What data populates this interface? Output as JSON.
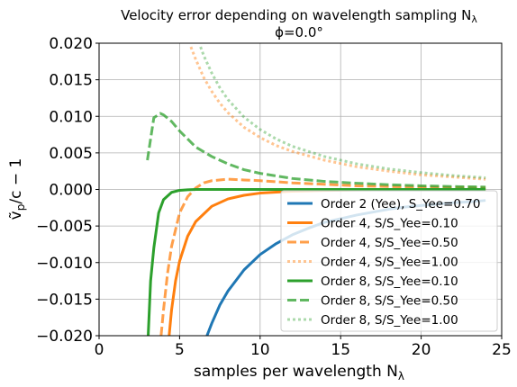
{
  "chart_data": {
    "type": "line",
    "title_line1": "Velocity error depending on wavelength sampling N",
    "title_line1_sub": "λ",
    "title_line2": "ϕ=0.0°",
    "xlabel": "samples per wavelength N",
    "xlabel_sub": "λ",
    "ylabel_main": "ṽ",
    "ylabel_sub": "p",
    "ylabel_rest": "/c − 1",
    "xlim": [
      0,
      25
    ],
    "ylim": [
      -0.02,
      0.02
    ],
    "xticks": [
      0,
      5,
      10,
      15,
      20,
      25
    ],
    "xtick_labels": [
      "0",
      "5",
      "10",
      "15",
      "20",
      "25"
    ],
    "yticks": [
      -0.02,
      -0.015,
      -0.01,
      -0.005,
      0.0,
      0.005,
      0.01,
      0.015,
      0.02
    ],
    "ytick_labels": [
      "−0.020",
      "−0.015",
      "−0.010",
      "−0.005",
      "0.000",
      "0.005",
      "0.010",
      "0.015",
      "0.020"
    ],
    "grid": true,
    "legend_position": "lower-right",
    "series": [
      {
        "name": "Order 2 (Yee), S_Yee=0.70",
        "color": "#1f77b4",
        "style": "solid",
        "alpha": 1.0,
        "x": [
          6.7,
          7,
          7.5,
          8,
          9,
          10,
          11,
          12,
          13,
          14,
          15,
          16,
          17,
          18,
          19,
          20,
          21,
          22,
          23,
          24
        ],
        "y": [
          -0.02,
          -0.0183,
          -0.0158,
          -0.0139,
          -0.011,
          -0.0089,
          -0.0074,
          -0.0062,
          -0.0053,
          -0.0045,
          -0.004,
          -0.0035,
          -0.0031,
          -0.0027,
          -0.0024,
          -0.0022,
          -0.002,
          -0.0018,
          -0.0017,
          -0.0015
        ]
      },
      {
        "name": "Order 4, S/S_Yee=0.10",
        "color": "#ff7f0e",
        "style": "solid",
        "alpha": 1.0,
        "x": [
          4.35,
          4.5,
          4.75,
          5,
          5.5,
          6,
          7,
          8,
          9,
          10,
          12,
          14,
          16,
          18,
          20,
          22,
          24
        ],
        "y": [
          -0.02,
          -0.0165,
          -0.0125,
          -0.0098,
          -0.0064,
          -0.0044,
          -0.0023,
          -0.0013,
          -0.0008,
          -0.0005,
          -0.00025,
          -0.00014,
          -8e-05,
          -5e-05,
          -3e-05,
          -2e-05,
          -1e-05
        ]
      },
      {
        "name": "Order 4, S/S_Yee=0.50",
        "color": "#ff7f0e",
        "style": "dashed",
        "alpha": 0.75,
        "x": [
          3.85,
          4,
          4.25,
          4.5,
          5,
          5.5,
          6,
          6.5,
          7,
          8,
          9,
          10,
          12,
          14,
          16,
          18,
          20,
          22,
          24
        ],
        "y": [
          -0.02,
          -0.0165,
          -0.0115,
          -0.0078,
          -0.0032,
          -0.001,
          0.0002,
          0.0009,
          0.0012,
          0.0014,
          0.0013,
          0.0012,
          0.0009,
          0.0007,
          0.0005,
          0.0004,
          0.0003,
          0.00025,
          0.0002
        ]
      },
      {
        "name": "Order 4, S/S_Yee=1.00",
        "color": "#ff7f0e",
        "style": "dotted",
        "alpha": 0.45,
        "x": [
          5.7,
          6,
          6.5,
          7,
          7.5,
          8,
          9,
          10,
          11,
          12,
          14,
          16,
          18,
          20,
          22,
          24
        ],
        "y": [
          0.0195,
          0.0178,
          0.0153,
          0.0134,
          0.0118,
          0.0105,
          0.0085,
          0.0071,
          0.006,
          0.0052,
          0.004,
          0.0031,
          0.0025,
          0.002,
          0.0017,
          0.0014
        ]
      },
      {
        "name": "Order 8, S/S_Yee=0.10",
        "color": "#2ca02c",
        "style": "solid",
        "alpha": 1.0,
        "x": [
          3.05,
          3.2,
          3.4,
          3.7,
          4,
          4.5,
          5,
          5.5,
          6,
          8,
          10,
          12,
          14,
          16,
          18,
          20,
          22,
          24
        ],
        "y": [
          -0.02,
          -0.0125,
          -0.008,
          -0.0032,
          -0.0014,
          -0.0004,
          -0.00012,
          -4e-05,
          0.0,
          0.0,
          0.0,
          0.0,
          0.0,
          0.0,
          0.0,
          0.0,
          0.0,
          0.0
        ]
      },
      {
        "name": "Order 8, S/S_Yee=0.50",
        "color": "#2ca02c",
        "style": "dashed",
        "alpha": 0.75,
        "x": [
          3.0,
          3.4,
          3.8,
          4.0,
          4.5,
          5,
          6,
          7,
          8,
          9,
          10,
          12,
          14,
          16,
          18,
          20,
          22,
          24
        ],
        "y": [
          0.004,
          0.0098,
          0.0104,
          0.0102,
          0.0093,
          0.008,
          0.0058,
          0.0045,
          0.0035,
          0.0027,
          0.0022,
          0.0015,
          0.0011,
          0.00085,
          0.00065,
          0.0005,
          0.0004,
          0.00033
        ]
      },
      {
        "name": "Order 8, S/S_Yee=1.00",
        "color": "#2ca02c",
        "style": "dotted",
        "alpha": 0.4,
        "x": [
          6.3,
          6.5,
          7,
          7.5,
          8,
          9,
          10,
          11,
          12,
          14,
          16,
          18,
          20,
          22,
          24
        ],
        "y": [
          0.0195,
          0.0183,
          0.0159,
          0.0139,
          0.0123,
          0.0099,
          0.0082,
          0.0069,
          0.0059,
          0.0045,
          0.0035,
          0.0028,
          0.0023,
          0.0019,
          0.0016
        ]
      }
    ]
  }
}
